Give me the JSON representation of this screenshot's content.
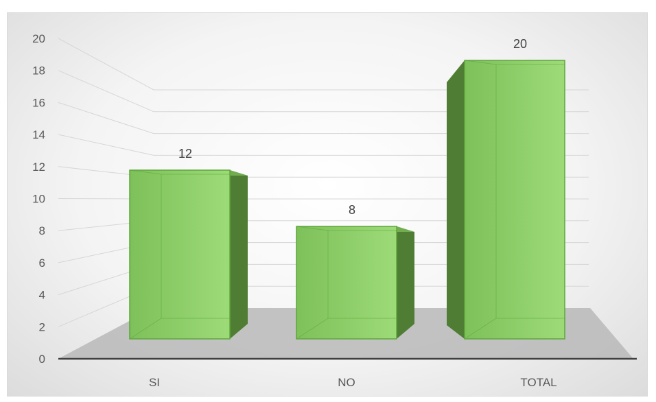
{
  "chart_data": {
    "type": "bar",
    "style": "3d-column",
    "title": "",
    "xlabel": "",
    "ylabel": "",
    "categories": [
      "SI",
      "NO",
      "TOTAL"
    ],
    "values": [
      12,
      8,
      20
    ],
    "data_labels": [
      "12",
      "8",
      "20"
    ],
    "ylim": [
      0,
      20
    ],
    "yticks": [
      "0",
      "2",
      "4",
      "6",
      "8",
      "10",
      "12",
      "14",
      "16",
      "18",
      "20"
    ],
    "grid": true,
    "legend": "none",
    "colors": {
      "bar_front": "#8fd06a",
      "bar_side": "#4e7d33",
      "bar_top": "#72ad4f",
      "bar_edge": "#5ea63b",
      "floor": "#b8b8b8",
      "gridline": "#d6d6d6",
      "axis": "#404040"
    }
  }
}
